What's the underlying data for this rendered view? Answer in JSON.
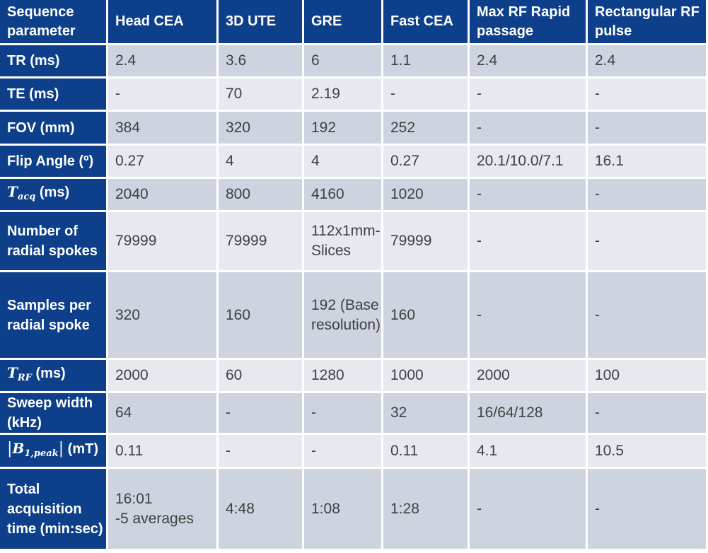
{
  "table": {
    "columns": [
      "Sequence parameter",
      "Head CEA",
      "3D UTE",
      "GRE",
      "Fast CEA",
      "Max RF Rapid passage",
      "Rectangular RF pulse"
    ],
    "rows": [
      {
        "label": "TR (ms)",
        "values": [
          "2.4",
          "3.6",
          "6",
          "1.1",
          "2.4",
          "2.4"
        ]
      },
      {
        "label": "TE (ms)",
        "values": [
          "-",
          "70",
          "2.19",
          "-",
          "-",
          "-"
        ]
      },
      {
        "label": "FOV (mm)",
        "values": [
          "384",
          "320",
          "192",
          "252",
          "-",
          "-"
        ]
      },
      {
        "label": "Flip Angle (º)",
        "values": [
          "0.27",
          "4",
          "4",
          "0.27",
          "20.1/10.0/7.1",
          " 16.1"
        ]
      },
      {
        "label_symbol": "T",
        "label_sub": "acq",
        "label_suffix": " (ms)",
        "values": [
          "2040",
          "800",
          "4160",
          "1020",
          "-",
          "-"
        ]
      },
      {
        "label": "Number of radial spokes",
        "values": [
          "79999",
          "79999",
          "112x1mm-Slices",
          "79999",
          "-",
          "-"
        ]
      },
      {
        "label": "Samples per radial spoke",
        "values": [
          "320",
          "160",
          "192 (Base resolution)",
          "160",
          "-",
          "-"
        ]
      },
      {
        "label_symbol": "T",
        "label_sub": "RF",
        "label_suffix": " (ms)",
        "values": [
          "2000",
          "60",
          "1280",
          "1000",
          "2000",
          "100"
        ]
      },
      {
        "label": "Sweep width (kHz)",
        "values": [
          "64",
          "-",
          "-",
          "32",
          "16/64/128",
          "-"
        ]
      },
      {
        "label_abs_prefix": "|",
        "label_symbol": "B",
        "label_sub": "1,peak",
        "label_abs_suffix": "|",
        "label_suffix": " (mT)",
        "values": [
          "0.11",
          "-",
          "-",
          "0.11",
          "4.1",
          "10.5"
        ]
      },
      {
        "label": "Total acquisition time (min:sec)",
        "values": [
          "16:01\n-5 averages",
          "4:48",
          "1:08",
          "1:28",
          "-",
          "-"
        ]
      }
    ]
  }
}
